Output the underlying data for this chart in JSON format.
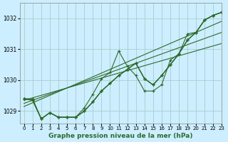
{
  "background_color": "#cceeff",
  "grid_color": "#aacccc",
  "line_color": "#2d6a2d",
  "xlabel": "Graphe pression niveau de la mer (hPa)",
  "ylim": [
    1028.6,
    1032.5
  ],
  "xlim": [
    -0.5,
    23
  ],
  "yticks": [
    1029,
    1030,
    1031,
    1032
  ],
  "xtick_labels": [
    "0",
    "1",
    "2",
    "3",
    "4",
    "5",
    "6",
    "7",
    "8",
    "9",
    "10",
    "11",
    "12",
    "13",
    "14",
    "15",
    "16",
    "17",
    "18",
    "19",
    "20",
    "21",
    "22",
    "23"
  ],
  "series": [
    [
      1029.4,
      1029.4,
      1028.75,
      1028.95,
      1028.8,
      1028.8,
      1028.8,
      1029.1,
      1029.55,
      1030.05,
      1030.25,
      1030.95,
      1030.45,
      1030.15,
      1029.65,
      1029.65,
      1029.85,
      1030.65,
      1030.85,
      1031.5,
      1031.55,
      1031.95,
      1032.1,
      1032.2
    ],
    [
      1029.4,
      1029.35,
      1028.75,
      1028.95,
      1028.8,
      1028.8,
      1028.8,
      1029.0,
      1029.3,
      1029.65,
      1029.9,
      1030.15,
      1030.35,
      1030.55,
      1030.05,
      1029.85,
      1030.15,
      1030.5,
      1030.85,
      1031.3,
      1031.55,
      1031.95,
      1032.1,
      1032.2
    ],
    [
      1029.4,
      1029.35,
      1028.75,
      1028.95,
      1028.8,
      1028.8,
      1028.8,
      1029.0,
      1029.3,
      1029.65,
      1029.9,
      1030.15,
      1030.35,
      1030.55,
      1030.05,
      1029.85,
      1030.15,
      1030.5,
      1030.85,
      1031.3,
      1031.55,
      1031.95,
      1032.1,
      1032.2
    ],
    [
      1029.4,
      1029.35,
      1028.75,
      1028.95,
      1028.8,
      1028.8,
      1028.8,
      1029.0,
      1029.3,
      1029.65,
      1029.9,
      1030.15,
      1030.35,
      1030.55,
      1030.05,
      1029.85,
      1030.15,
      1030.5,
      1030.85,
      1031.3,
      1031.55,
      1031.95,
      1032.1,
      1032.2
    ]
  ],
  "linear_series": [
    [
      1029.35,
      1029.43,
      1029.51,
      1029.59,
      1029.67,
      1029.75,
      1029.83,
      1029.91,
      1029.99,
      1030.07,
      1030.15,
      1030.23,
      1030.31,
      1030.39,
      1030.47,
      1030.55,
      1030.63,
      1030.71,
      1030.79,
      1030.87,
      1030.95,
      1031.03,
      1031.11,
      1031.19
    ],
    [
      1029.25,
      1029.35,
      1029.45,
      1029.55,
      1029.65,
      1029.75,
      1029.85,
      1029.95,
      1030.05,
      1030.15,
      1030.25,
      1030.35,
      1030.45,
      1030.55,
      1030.65,
      1030.75,
      1030.85,
      1030.95,
      1031.05,
      1031.15,
      1031.25,
      1031.35,
      1031.45,
      1031.55
    ],
    [
      1029.15,
      1029.27,
      1029.39,
      1029.51,
      1029.63,
      1029.75,
      1029.87,
      1029.99,
      1030.11,
      1030.23,
      1030.35,
      1030.47,
      1030.59,
      1030.71,
      1030.83,
      1030.95,
      1031.07,
      1031.19,
      1031.31,
      1031.43,
      1031.55,
      1031.67,
      1031.79,
      1031.91
    ]
  ]
}
